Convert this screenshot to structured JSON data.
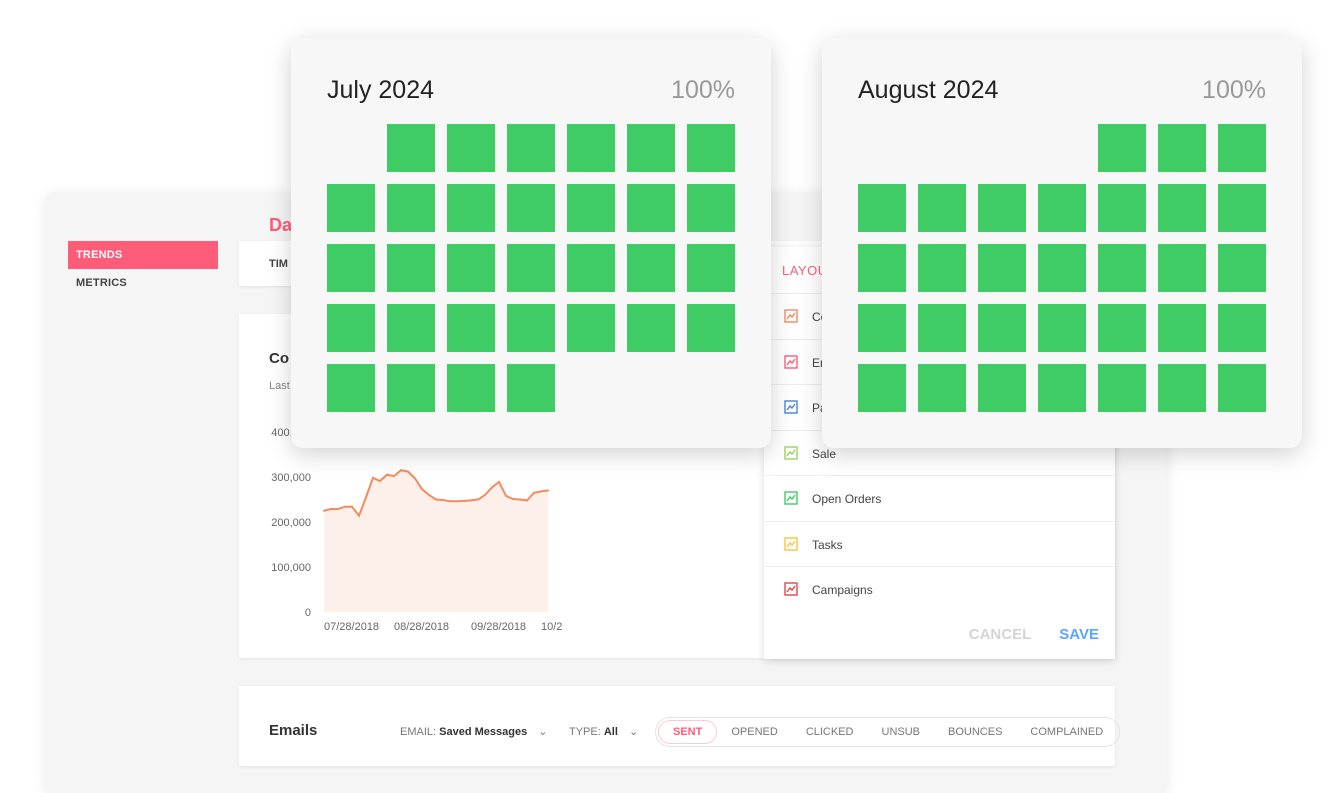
{
  "app": {
    "sidebar": {
      "items": [
        {
          "label": "Trends",
          "active": true
        },
        {
          "label": "Metrics",
          "active": false
        }
      ]
    },
    "page_title": "Da",
    "tab_label": "TIM",
    "chart_card": {
      "title": "Co",
      "subtitle": "Last",
      "chart_data": {
        "type": "area",
        "x": [
          "07/28/2018",
          "07/31/2018",
          "08/03/2018",
          "08/06/2018",
          "08/09/2018",
          "08/12/2018",
          "08/15/2018",
          "08/18/2018",
          "08/21/2018",
          "08/24/2018",
          "08/27/2018",
          "08/30/2018",
          "09/02/2018",
          "09/05/2018",
          "09/08/2018",
          "09/11/2018",
          "09/14/2018",
          "09/17/2018",
          "09/20/2018",
          "09/23/2018",
          "09/26/2018",
          "09/29/2018",
          "10/02/2018",
          "10/05/2018",
          "10/08/2018",
          "10/11/2018",
          "10/14/2018",
          "10/17/2018",
          "10/20/2018",
          "10/23/2018",
          "10/26/2018",
          "10/29/2018",
          "11/01/2018"
        ],
        "values": [
          225000,
          229000,
          229000,
          234000,
          234000,
          214000,
          255000,
          298000,
          291000,
          305000,
          302000,
          315000,
          312000,
          297000,
          273000,
          260000,
          250000,
          249000,
          246000,
          246000,
          247000,
          248000,
          250000,
          260000,
          277000,
          289000,
          258000,
          251000,
          250000,
          248000,
          265000,
          268000,
          270000
        ],
        "yticks": [
          "400,000",
          "300,000",
          "200,000",
          "100,000",
          "0"
        ],
        "xticks": [
          "07/28/2018",
          "08/28/2018",
          "09/28/2018",
          "10/2"
        ],
        "ylim": [
          0,
          400000
        ],
        "line_color": "#f28c5e",
        "fill_color": "#fdf0ea"
      }
    },
    "emails": {
      "title": "Emails",
      "email_filter": {
        "label": "EMAIL:",
        "value": "Saved Messages"
      },
      "type_filter": {
        "label": "TYPE:",
        "value": "All"
      },
      "pills": [
        {
          "label": "Sent",
          "active": true
        },
        {
          "label": "Opened"
        },
        {
          "label": "Clicked"
        },
        {
          "label": "Unsub"
        },
        {
          "label": "Bounces"
        },
        {
          "label": "Complained"
        }
      ]
    },
    "layout_panel": {
      "title": "Layou",
      "items": [
        {
          "label": "Co",
          "color": "#f28c5e"
        },
        {
          "label": "Em",
          "color": "#ff5c7a"
        },
        {
          "label": "Pa",
          "color": "#4a84d8"
        },
        {
          "label": "Sale",
          "color": "#9ad45a"
        },
        {
          "label": "Open Orders",
          "color": "#3fcc65"
        },
        {
          "label": "Tasks",
          "color": "#f5c542"
        },
        {
          "label": "Campaigns",
          "color": "#e04848"
        }
      ],
      "cancel_label": "Cancel",
      "save_label": "Save"
    }
  },
  "calendars": [
    {
      "title": "July 2024",
      "percent": "100%",
      "leading_blanks": 1,
      "days": 31,
      "day_color": "#3fcc65"
    },
    {
      "title": "August 2024",
      "percent": "100%",
      "leading_blanks": 4,
      "days": 31,
      "day_color": "#3fcc65"
    }
  ]
}
